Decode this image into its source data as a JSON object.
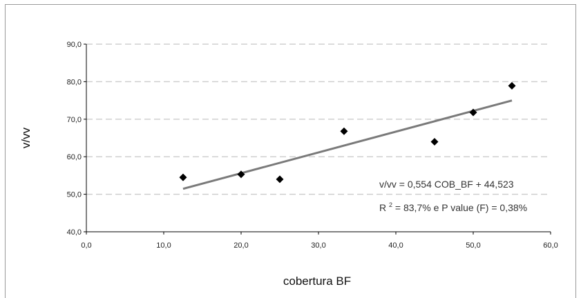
{
  "chart_data": {
    "type": "scatter",
    "title": "",
    "xlabel": "cobertura BF",
    "ylabel": "v/vv",
    "xlim": [
      0,
      60
    ],
    "ylim": [
      40,
      90
    ],
    "x_ticks": [
      "0,0",
      "10,0",
      "20,0",
      "30,0",
      "40,0",
      "50,0",
      "60,0"
    ],
    "y_ticks": [
      "40,0",
      "50,0",
      "60,0",
      "70,0",
      "80,0",
      "90,0"
    ],
    "grid": "horizontal dashed",
    "points": [
      {
        "x": 12.5,
        "y": 54.5
      },
      {
        "x": 20.0,
        "y": 55.3
      },
      {
        "x": 25.0,
        "y": 54.0
      },
      {
        "x": 33.3,
        "y": 66.8
      },
      {
        "x": 45.0,
        "y": 64.0
      },
      {
        "x": 50.0,
        "y": 71.8
      },
      {
        "x": 55.0,
        "y": 78.9
      }
    ],
    "trendline": {
      "slope": 0.554,
      "intercept": 44.523,
      "x_from": 12.5,
      "x_to": 55.0
    },
    "annotations": {
      "equation": "v/vv = 0,554 COB_BF + 44,523",
      "r2_prefix": "R",
      "r2_sup": "2",
      "r2_rest": " = 83,7% e P value (F) = 0,38%"
    },
    "colors": {
      "points": "#000000",
      "trendline": "#7a7a7a",
      "grid": "#cfcfcf",
      "axis": "#000000"
    }
  }
}
